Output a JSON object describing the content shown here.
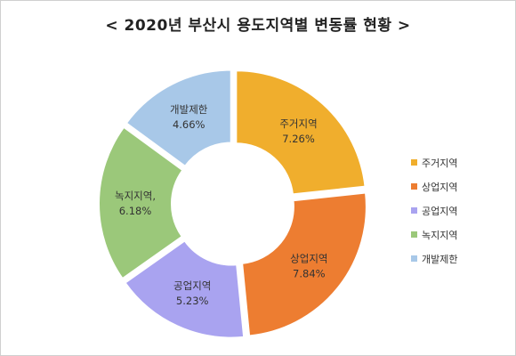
{
  "chart_data": {
    "type": "pie",
    "title": "< 2020년 부산시 용도지역별 변동률 현황 >",
    "categories": [
      "주거지역",
      "상업지역",
      "공업지역",
      "녹지지역",
      "개발제한"
    ],
    "data_labels": [
      "주거지역",
      "상업지역",
      "공업지역",
      "녹지지역,",
      "개발제한"
    ],
    "values": [
      7.26,
      7.84,
      5.23,
      6.18,
      4.66
    ],
    "value_labels": [
      "7.26%",
      "7.84%",
      "5.23%",
      "6.18%",
      "4.66%"
    ],
    "colors": [
      "#F0AE2D",
      "#ED7D31",
      "#A9A3F0",
      "#9BC87A",
      "#A8C8E8"
    ],
    "donut": true,
    "legend_position": "right"
  }
}
